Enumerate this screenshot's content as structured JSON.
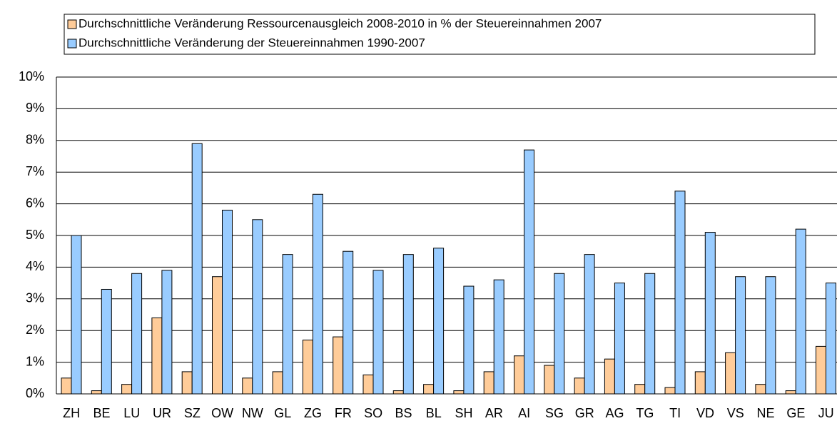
{
  "chart_data": {
    "type": "bar",
    "categories": [
      "ZH",
      "BE",
      "LU",
      "UR",
      "SZ",
      "OW",
      "NW",
      "GL",
      "ZG",
      "FR",
      "SO",
      "BS",
      "BL",
      "SH",
      "AR",
      "AI",
      "SG",
      "GR",
      "AG",
      "TG",
      "TI",
      "VD",
      "VS",
      "NE",
      "GE",
      "JU"
    ],
    "series": [
      {
        "name": "Durchschnittliche Veränderung Ressourcenausgleich 2008-2010 in % der Steuereinnahmen 2007",
        "color": "#ffcc99",
        "values": [
          0.5,
          0.1,
          0.3,
          2.4,
          0.7,
          3.7,
          0.5,
          0.7,
          1.7,
          1.8,
          0.6,
          0.1,
          0.3,
          0.1,
          0.7,
          1.2,
          0.9,
          0.5,
          1.1,
          0.3,
          0.2,
          0.7,
          1.3,
          0.3,
          0.1,
          1.5
        ]
      },
      {
        "name": "Durchschnittliche Veränderung der Steuereinnahmen 1990-2007",
        "color": "#99ccff",
        "values": [
          5.0,
          3.3,
          3.8,
          3.9,
          7.9,
          5.8,
          5.5,
          4.4,
          6.3,
          4.5,
          3.9,
          4.4,
          4.6,
          3.4,
          3.6,
          7.7,
          3.8,
          4.4,
          3.5,
          3.8,
          6.4,
          5.1,
          3.7,
          3.7,
          5.2,
          3.5
        ]
      }
    ],
    "ylim": [
      0,
      10
    ],
    "yticks": [
      {
        "value": 0,
        "label": "0%"
      },
      {
        "value": 1,
        "label": "1%"
      },
      {
        "value": 2,
        "label": "2%"
      },
      {
        "value": 3,
        "label": "3%"
      },
      {
        "value": 4,
        "label": "4%"
      },
      {
        "value": 5,
        "label": "5%"
      },
      {
        "value": 6,
        "label": "6%"
      },
      {
        "value": 7,
        "label": "7%"
      },
      {
        "value": 8,
        "label": "8%"
      },
      {
        "value": 9,
        "label": "9%"
      },
      {
        "value": 10,
        "label": "10%"
      }
    ],
    "grid": true
  }
}
